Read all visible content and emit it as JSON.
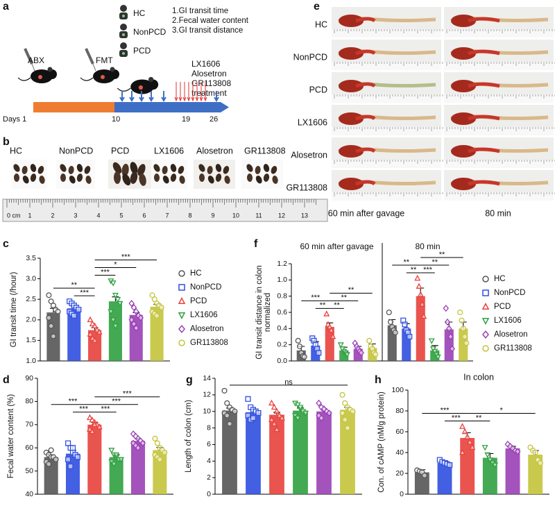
{
  "panel_labels": [
    "a",
    "b",
    "c",
    "d",
    "e",
    "f",
    "g",
    "h"
  ],
  "groups": {
    "names": [
      "HC",
      "NonPCD",
      "PCD",
      "LX1606",
      "Alosetron",
      "GR113808"
    ],
    "colors": [
      "#555555",
      "#2f4fe0",
      "#e8413c",
      "#2fa040",
      "#9a3fb5",
      "#c3c43a"
    ],
    "markers": [
      "circle",
      "square",
      "triangle",
      "triangle-down",
      "diamond",
      "circle"
    ]
  },
  "schematic": {
    "groups": [
      "HC",
      "NonPCD",
      "PCD"
    ],
    "measures": [
      "1.GI transit time",
      "2.Fecal water content",
      "3.GI transit distance"
    ],
    "steps": [
      "ABX",
      "FMT"
    ],
    "treatment": [
      "LX1606",
      "Alosetron",
      "GR113808",
      "treatment"
    ],
    "days": [
      "Days 1",
      "10",
      "19",
      "26"
    ]
  },
  "feces_photo": {
    "ruler": [
      "0 cm",
      "1",
      "2",
      "3",
      "4",
      "5",
      "6",
      "7",
      "8",
      "9",
      "10",
      "11",
      "12",
      "13"
    ]
  },
  "gi_photo": {
    "captions": [
      "60 min after gavage",
      "80 min"
    ]
  },
  "chart_data": [
    {
      "type": "bar",
      "ylabel": "GI transit time (/hour)",
      "legend": true,
      "ylim": [
        1,
        3.5
      ],
      "yticks": [
        {
          "value": 1,
          "label": "1.0"
        },
        1.5,
        {
          "value": 2,
          "label": "2.0"
        },
        2.5,
        {
          "value": 3,
          "label": "3.0"
        },
        3.5
      ],
      "values": [
        2.18,
        2.28,
        1.75,
        2.45,
        2.12,
        2.32
      ],
      "errors": [
        0.1,
        0.06,
        0.06,
        0.11,
        0.06,
        0.06
      ],
      "points": [
        [
          2.6,
          2.45,
          2.35,
          2.25,
          2.2,
          2.05,
          1.85,
          1.6
        ],
        [
          2.45,
          2.4,
          2.35,
          2.3,
          2.25,
          2.2,
          2.15,
          2.1
        ],
        [
          2.0,
          1.9,
          1.85,
          1.75,
          1.7,
          1.65,
          1.55,
          1.5
        ],
        [
          2.95,
          2.9,
          2.6,
          2.5,
          2.4,
          2.2,
          2.0,
          1.85
        ],
        [
          2.4,
          2.3,
          2.2,
          2.1,
          2.05,
          2.0,
          1.9,
          1.8
        ],
        [
          2.6,
          2.5,
          2.4,
          2.35,
          2.3,
          2.2,
          2.15,
          2.1
        ]
      ],
      "significance": [
        {
          "between": [
            "HC",
            "PCD"
          ],
          "label": "**"
        },
        {
          "between": [
            "NonPCD",
            "PCD"
          ],
          "label": "***"
        },
        {
          "between": [
            "PCD",
            "LX1606"
          ],
          "label": "***"
        },
        {
          "between": [
            "PCD",
            "Alosetron"
          ],
          "label": "*"
        },
        {
          "between": [
            "PCD",
            "GR113808"
          ],
          "label": "***"
        }
      ]
    },
    {
      "type": "bar",
      "ylabel": "Fecal water content (%)",
      "ylim": [
        40,
        90
      ],
      "yticks": [
        40,
        50,
        60,
        70,
        80,
        90
      ],
      "values": [
        56,
        57.5,
        70,
        56,
        63,
        59
      ],
      "errors": [
        1,
        1.5,
        1,
        1,
        1,
        1.2
      ],
      "points": [
        [
          58,
          57,
          56,
          56,
          55,
          54,
          53,
          59
        ],
        [
          62,
          60,
          58,
          57,
          56,
          55,
          52,
          60
        ],
        [
          73,
          72,
          71,
          70,
          69,
          68,
          67,
          70
        ],
        [
          59,
          57,
          56,
          55,
          55,
          54,
          53,
          57
        ],
        [
          66,
          65,
          64,
          63,
          62,
          62,
          61,
          60
        ],
        [
          64,
          62,
          60,
          59,
          58,
          57,
          56,
          55
        ]
      ],
      "significance": [
        {
          "between": [
            "HC",
            "PCD"
          ],
          "label": "***"
        },
        {
          "between": [
            "NonPCD",
            "PCD"
          ],
          "label": "***"
        },
        {
          "between": [
            "PCD",
            "LX1606"
          ],
          "label": "***"
        },
        {
          "between": [
            "PCD",
            "Alosetron"
          ],
          "label": "***"
        },
        {
          "between": [
            "PCD",
            "GR113808"
          ],
          "label": "***"
        }
      ]
    },
    {
      "type": "bar",
      "ylabel": [
        "GI transit distance in colon",
        "normalized"
      ],
      "legend": true,
      "ylim": [
        0,
        1.2
      ],
      "yticks": [
        {
          "value": 0,
          "label": "0.0"
        },
        0.2,
        0.4,
        0.6,
        0.8,
        {
          "value": 1,
          "label": "1.0"
        },
        1.2
      ],
      "subplots": [
        {
          "title": "60 min after gavage",
          "values": [
            0.13,
            0.19,
            0.42,
            0.13,
            0.15,
            0.16
          ],
          "errors": [
            0.05,
            0.05,
            0.05,
            0.04,
            0.03,
            0.05
          ],
          "points": [
            [
              0.25,
              0.18,
              0.1,
              0.06,
              0.05
            ],
            [
              0.28,
              0.25,
              0.2,
              0.15,
              0.1
            ],
            [
              0.58,
              0.45,
              0.42,
              0.38,
              0.3
            ],
            [
              0.2,
              0.15,
              0.12,
              0.1,
              0.08
            ],
            [
              0.22,
              0.18,
              0.15,
              0.12,
              0.1
            ],
            [
              0.25,
              0.18,
              0.15,
              0.1,
              0.08
            ]
          ],
          "significance": [
            {
              "between": [
                "HC",
                "PCD"
              ],
              "label": "***"
            },
            {
              "between": [
                "NonPCD",
                "PCD"
              ],
              "label": "**"
            },
            {
              "between": [
                "PCD",
                "LX1606"
              ],
              "label": "**"
            },
            {
              "between": [
                "PCD",
                "Alosetron"
              ],
              "label": "**"
            },
            {
              "between": [
                "PCD",
                "GR113808"
              ],
              "label": "**"
            }
          ]
        },
        {
          "title": "80 min",
          "values": [
            0.44,
            0.4,
            0.8,
            0.13,
            0.39,
            0.4
          ],
          "errors": [
            0.07,
            0.06,
            0.1,
            0.06,
            0.09,
            0.08
          ],
          "points": [
            [
              0.6,
              0.48,
              0.42,
              0.38,
              0.35
            ],
            [
              0.5,
              0.45,
              0.38,
              0.35,
              0.3
            ],
            [
              1.02,
              0.92,
              0.82,
              0.7,
              0.55
            ],
            [
              0.25,
              0.15,
              0.12,
              0.08,
              0.05
            ],
            [
              0.65,
              0.48,
              0.4,
              0.3,
              0.15
            ],
            [
              0.6,
              0.5,
              0.4,
              0.3,
              0.22
            ]
          ],
          "significance": [
            {
              "between": [
                "HC",
                "PCD"
              ],
              "label": "**"
            },
            {
              "between": [
                "NonPCD",
                "PCD"
              ],
              "label": "**"
            },
            {
              "between": [
                "PCD",
                "LX1606"
              ],
              "label": "***"
            },
            {
              "between": [
                "PCD",
                "Alosetron"
              ],
              "label": "**"
            },
            {
              "between": [
                "PCD",
                "GR113808"
              ],
              "label": "**"
            }
          ]
        }
      ]
    },
    {
      "type": "bar",
      "ylabel": "Length of colon (cm)",
      "ylim": [
        0,
        14
      ],
      "yticks": [
        0,
        2,
        4,
        6,
        8,
        10,
        12,
        14
      ],
      "values": [
        10.1,
        9.9,
        9.6,
        10.1,
        10.0,
        10.2
      ],
      "errors": [
        0.3,
        0.3,
        0.3,
        0.3,
        0.3,
        0.3
      ],
      "points": [
        [
          12.5,
          11,
          10.5,
          10.2,
          10,
          9.8,
          9.5,
          8.5
        ],
        [
          11.5,
          10.5,
          10.2,
          10,
          9.8,
          9.5,
          9,
          9.2
        ],
        [
          11,
          10.5,
          10,
          9.5,
          9.2,
          9,
          8.5,
          7.8
        ],
        [
          11,
          10.8,
          10.3,
          10,
          9.8,
          9.5,
          9.2,
          10.5
        ],
        [
          11,
          10.5,
          10.2,
          10,
          9.8,
          9.5,
          9.2,
          10.3
        ],
        [
          12,
          11,
          10.5,
          10.2,
          10,
          9.8,
          9,
          8
        ]
      ],
      "significance": [
        {
          "between": [
            "HC",
            "GR113808"
          ],
          "label": "ns"
        }
      ]
    },
    {
      "type": "bar",
      "title": "In colon",
      "ylabel": "Con. of  cAMP (nM/g protein)",
      "ylim": [
        0,
        100
      ],
      "yticks": [
        0,
        20,
        40,
        60,
        80,
        100
      ],
      "values": [
        21,
        30,
        54,
        35,
        44,
        38
      ],
      "errors": [
        2.5,
        2,
        5,
        4,
        2,
        4
      ],
      "points": [
        [
          23,
          22,
          21,
          18
        ],
        [
          33,
          31,
          30,
          29,
          28
        ],
        [
          65,
          60,
          55,
          50,
          45,
          40
        ],
        [
          45,
          38,
          33,
          30,
          28
        ],
        [
          48,
          46,
          44,
          42,
          41
        ],
        [
          45,
          42,
          40,
          33,
          30
        ]
      ],
      "significance": [
        {
          "between": [
            "HC",
            "PCD"
          ],
          "label": "***"
        },
        {
          "between": [
            "NonPCD",
            "PCD"
          ],
          "label": "***"
        },
        {
          "between": [
            "PCD",
            "LX1606"
          ],
          "label": "**"
        },
        {
          "between": [
            "PCD",
            "GR113808"
          ],
          "label": "*"
        }
      ]
    }
  ]
}
